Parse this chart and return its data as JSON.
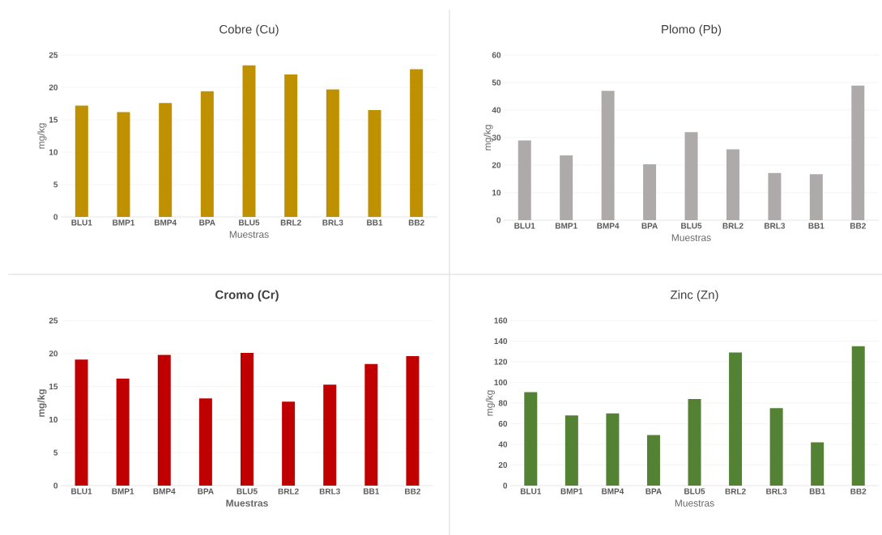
{
  "chart_data": [
    {
      "type": "bar",
      "title": "Cobre (Cu)",
      "xlabel": "Muestras",
      "ylabel": "mg/kg",
      "categories": [
        "BLU1",
        "BMP1",
        "BMP4",
        "BPA",
        "BLU5",
        "BRL2",
        "BRL3",
        "BB1",
        "BB2"
      ],
      "values": [
        17.2,
        16.2,
        17.6,
        19.4,
        23.4,
        22.0,
        19.7,
        16.5,
        22.8
      ],
      "color": "#bf9000",
      "ylim": [
        0,
        25
      ],
      "yticks": [
        0,
        5,
        10,
        15,
        20,
        25
      ],
      "grid": "y"
    },
    {
      "type": "bar",
      "title": "Plomo (Pb)",
      "xlabel": "Muestras",
      "ylabel": "mg/kg",
      "categories": [
        "BLU1",
        "BMP1",
        "BMP4",
        "BPA",
        "BLU5",
        "BRL2",
        "BRL3",
        "BB1",
        "BB2"
      ],
      "values": [
        29,
        23.5,
        47,
        20.3,
        32,
        25.7,
        17.1,
        16.7,
        48.9
      ],
      "color": "#aeaaaa",
      "ylim": [
        0,
        60
      ],
      "yticks": [
        0,
        10,
        20,
        30,
        40,
        50,
        60
      ],
      "grid": "y"
    },
    {
      "type": "bar",
      "title": "Cromo (Cr)",
      "xlabel": "Muestras",
      "ylabel": "mg/kg",
      "categories": [
        "BLU1",
        "BMP1",
        "BMP4",
        "BPA",
        "BLU5",
        "BRL2",
        "BRL3",
        "BB1",
        "BB2"
      ],
      "values": [
        19.1,
        16.2,
        19.8,
        13.2,
        20.1,
        12.7,
        15.3,
        18.4,
        19.6
      ],
      "color": "#c00000",
      "ylim": [
        0,
        25
      ],
      "yticks": [
        0,
        5,
        10,
        15,
        20,
        25
      ],
      "grid": "y"
    },
    {
      "type": "bar",
      "title": "Zinc (Zn)",
      "xlabel": "Muestras",
      "ylabel": "mg/kg",
      "categories": [
        "BLU1",
        "BMP1",
        "BMP4",
        "BPA",
        "BLU5",
        "BRL2",
        "BRL3",
        "BB1",
        "BB2"
      ],
      "values": [
        90.5,
        68,
        70,
        49,
        84,
        129,
        75,
        42,
        135
      ],
      "color": "#548235",
      "ylim": [
        0,
        160
      ],
      "yticks": [
        0,
        20,
        40,
        60,
        80,
        100,
        120,
        140,
        160
      ],
      "grid": "y"
    }
  ]
}
